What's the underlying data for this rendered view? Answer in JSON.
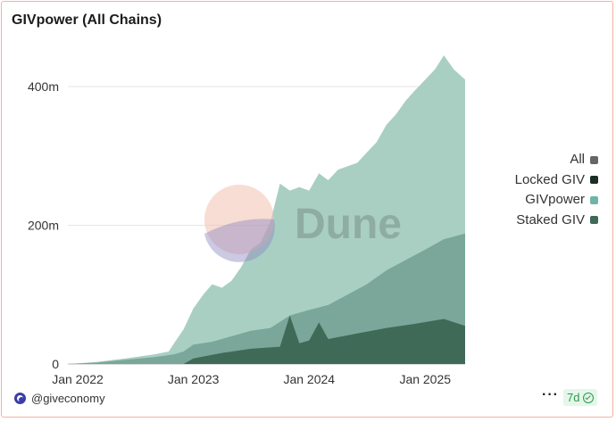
{
  "title": "GIVpower (All Chains)",
  "watermark": "Dune",
  "footer": {
    "author": "@giveconomy",
    "more_label": "···",
    "period": "7d"
  },
  "colors": {
    "all": "#666666",
    "locked_giv": "#1a2e24",
    "givpower": "#a9cfc3",
    "staked_giv": "#3f6a58",
    "staked_mid": "#7aa79a",
    "legend_givpower": "#6fb5a5"
  },
  "chart_data": {
    "type": "area",
    "title": "GIVpower (All Chains)",
    "xlabel": "",
    "ylabel": "",
    "x_ticks": [
      "Jan 2022",
      "Jan 2023",
      "Jan 2024",
      "Jan 2025"
    ],
    "y_ticks": [
      "0",
      "200m",
      "400m"
    ],
    "ylim": [
      0,
      440
    ],
    "y_unit": "m",
    "x_range": [
      "2021-12-01",
      "2025-05-07"
    ],
    "grid": "horizontal",
    "legend_position": "right",
    "legend": [
      "All",
      "Locked GIV",
      "GIVpower",
      "Staked GIV"
    ],
    "series": [
      {
        "name": "GIVpower",
        "points": [
          [
            "2021-12-01",
            0
          ],
          [
            "2022-03-01",
            3
          ],
          [
            "2022-06-01",
            8
          ],
          [
            "2022-09-01",
            14
          ],
          [
            "2022-10-15",
            18
          ],
          [
            "2022-11-01",
            30
          ],
          [
            "2022-12-01",
            50
          ],
          [
            "2023-01-01",
            80
          ],
          [
            "2023-02-01",
            100
          ],
          [
            "2023-03-01",
            115
          ],
          [
            "2023-04-01",
            110
          ],
          [
            "2023-05-01",
            120
          ],
          [
            "2023-06-01",
            140
          ],
          [
            "2023-07-01",
            165
          ],
          [
            "2023-08-01",
            175
          ],
          [
            "2023-09-01",
            205
          ],
          [
            "2023-10-01",
            260
          ],
          [
            "2023-11-01",
            250
          ],
          [
            "2023-12-01",
            255
          ],
          [
            "2024-01-01",
            250
          ],
          [
            "2024-02-01",
            275
          ],
          [
            "2024-03-01",
            265
          ],
          [
            "2024-04-01",
            280
          ],
          [
            "2024-05-01",
            285
          ],
          [
            "2024-06-01",
            290
          ],
          [
            "2024-07-01",
            305
          ],
          [
            "2024-08-01",
            320
          ],
          [
            "2024-09-01",
            345
          ],
          [
            "2024-10-01",
            360
          ],
          [
            "2024-11-01",
            380
          ],
          [
            "2024-12-01",
            395
          ],
          [
            "2025-01-01",
            410
          ],
          [
            "2025-02-01",
            425
          ],
          [
            "2025-03-01",
            445
          ],
          [
            "2025-04-01",
            425
          ],
          [
            "2025-05-07",
            410
          ]
        ]
      },
      {
        "name": "Staked GIV",
        "points": [
          [
            "2021-12-01",
            0
          ],
          [
            "2022-03-01",
            2
          ],
          [
            "2022-06-01",
            6
          ],
          [
            "2022-09-01",
            10
          ],
          [
            "2022-11-01",
            14
          ],
          [
            "2022-12-01",
            18
          ],
          [
            "2023-01-01",
            28
          ],
          [
            "2023-03-01",
            32
          ],
          [
            "2023-05-01",
            40
          ],
          [
            "2023-07-01",
            48
          ],
          [
            "2023-09-01",
            52
          ],
          [
            "2023-11-01",
            70
          ],
          [
            "2024-01-01",
            78
          ],
          [
            "2024-03-01",
            85
          ],
          [
            "2024-05-01",
            100
          ],
          [
            "2024-07-01",
            115
          ],
          [
            "2024-09-01",
            135
          ],
          [
            "2024-11-01",
            150
          ],
          [
            "2025-01-01",
            165
          ],
          [
            "2025-03-01",
            180
          ],
          [
            "2025-05-07",
            188
          ]
        ]
      },
      {
        "name": "Locked GIV",
        "points": [
          [
            "2021-12-01",
            0
          ],
          [
            "2022-12-01",
            0
          ],
          [
            "2023-01-01",
            8
          ],
          [
            "2023-04-01",
            16
          ],
          [
            "2023-07-01",
            22
          ],
          [
            "2023-10-01",
            25
          ],
          [
            "2023-11-01",
            70
          ],
          [
            "2023-12-01",
            30
          ],
          [
            "2024-01-01",
            34
          ],
          [
            "2024-02-01",
            60
          ],
          [
            "2024-03-01",
            36
          ],
          [
            "2024-06-01",
            44
          ],
          [
            "2024-09-01",
            52
          ],
          [
            "2024-12-01",
            58
          ],
          [
            "2025-03-01",
            65
          ],
          [
            "2025-05-07",
            55
          ]
        ]
      }
    ]
  }
}
